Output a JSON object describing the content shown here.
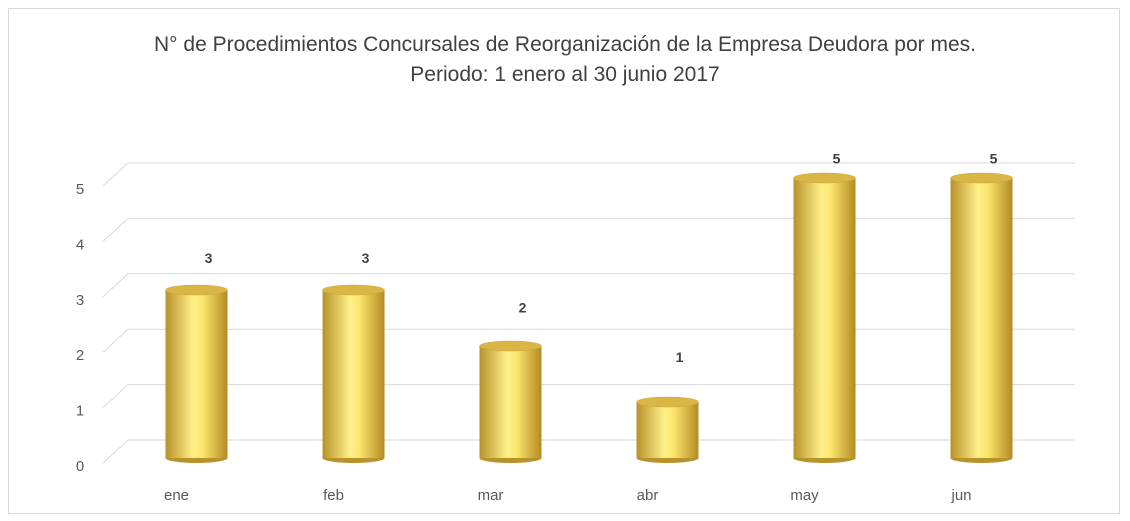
{
  "chart_data": {
    "type": "bar",
    "title": "N° de Procedimientos Concursales de Reorganización de la Empresa Deudora por mes.",
    "subtitle": "Periodo: 1 enero al 30 junio 2017",
    "categories": [
      "ene",
      "feb",
      "mar",
      "abr",
      "may",
      "jun"
    ],
    "values": [
      3,
      3,
      2,
      1,
      5,
      5
    ],
    "color": "#f5d75a",
    "ylim": [
      0,
      5
    ],
    "yticks": [
      0,
      1,
      2,
      3,
      4,
      5
    ],
    "grid": true
  }
}
